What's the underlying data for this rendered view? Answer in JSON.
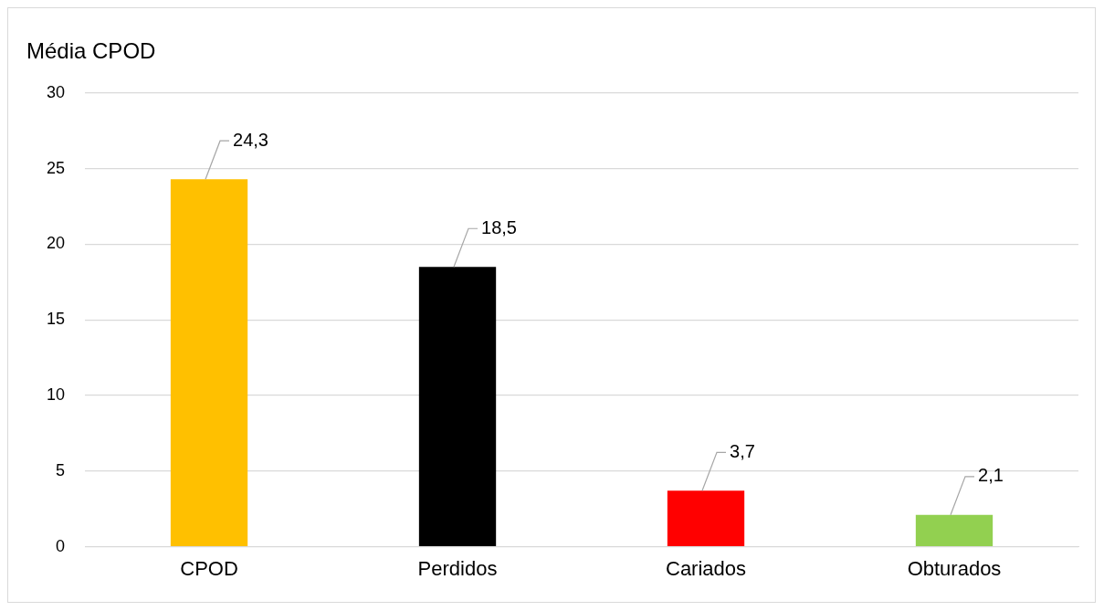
{
  "chart_data": {
    "type": "bar",
    "title": "Média CPOD",
    "categories": [
      "CPOD",
      "Perdidos",
      "Cariados",
      "Obturados"
    ],
    "values": [
      24.3,
      18.5,
      3.7,
      2.1
    ],
    "colors": [
      "#ffc000",
      "#000000",
      "#ff0000",
      "#92d050"
    ],
    "value_labels": [
      "24,3",
      "18,5",
      "3,7",
      "2,1"
    ],
    "ylim": [
      0,
      30
    ],
    "yticks": [
      0,
      5,
      10,
      15,
      20,
      25,
      30
    ],
    "grid": "y",
    "legend": false
  }
}
